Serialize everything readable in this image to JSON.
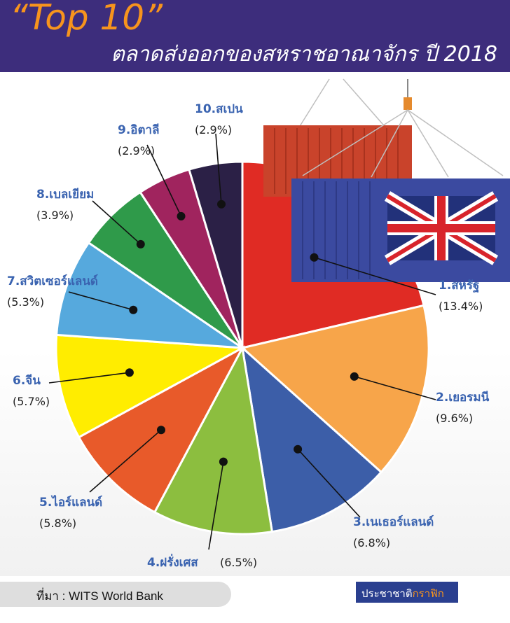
{
  "header": {
    "title": "“Top 10”",
    "subtitle": "ตลาดส่งออกของสหราชอาณาจักร ปี 2018"
  },
  "chart_data": {
    "type": "pie",
    "title": "“Top 10”",
    "subtitle": "ตลาดส่งออกของสหราชอาณาจักร ปี 2018",
    "labels": [
      "1.สหรัฐ",
      "2.เยอรมนี",
      "3.เนเธอร์แลนด์",
      "4.ฝรั่งเศส",
      "5.ไอร์แลนด์",
      "6.จีน",
      "7.สวิตเซอร์แลนด์",
      "8.เบลเยียม",
      "9.อิตาลี",
      "10.สเปน"
    ],
    "values": [
      13.4,
      9.6,
      6.8,
      6.5,
      5.8,
      5.7,
      5.3,
      3.9,
      2.9,
      2.9
    ],
    "value_labels": [
      "(13.4%)",
      "(9.6%)",
      "(6.8%)",
      "(6.5%)",
      "(5.8%)",
      "(5.7%)",
      "(5.3%)",
      "(3.9%)",
      "(2.9%)",
      "(2.9%)"
    ],
    "colors": [
      "#e02b24",
      "#f7a54a",
      "#3c5ea8",
      "#8cbe3f",
      "#e85a2a",
      "#ffed00",
      "#56a9dd",
      "#2f9a4a",
      "#a0245e",
      "#2b2046"
    ],
    "legend": "none",
    "start": "top"
  },
  "footer": {
    "source": "ที่มา : WITS World Bank",
    "brand_main": "ประชาชาติ",
    "brand_accent": "กราฟิก"
  }
}
